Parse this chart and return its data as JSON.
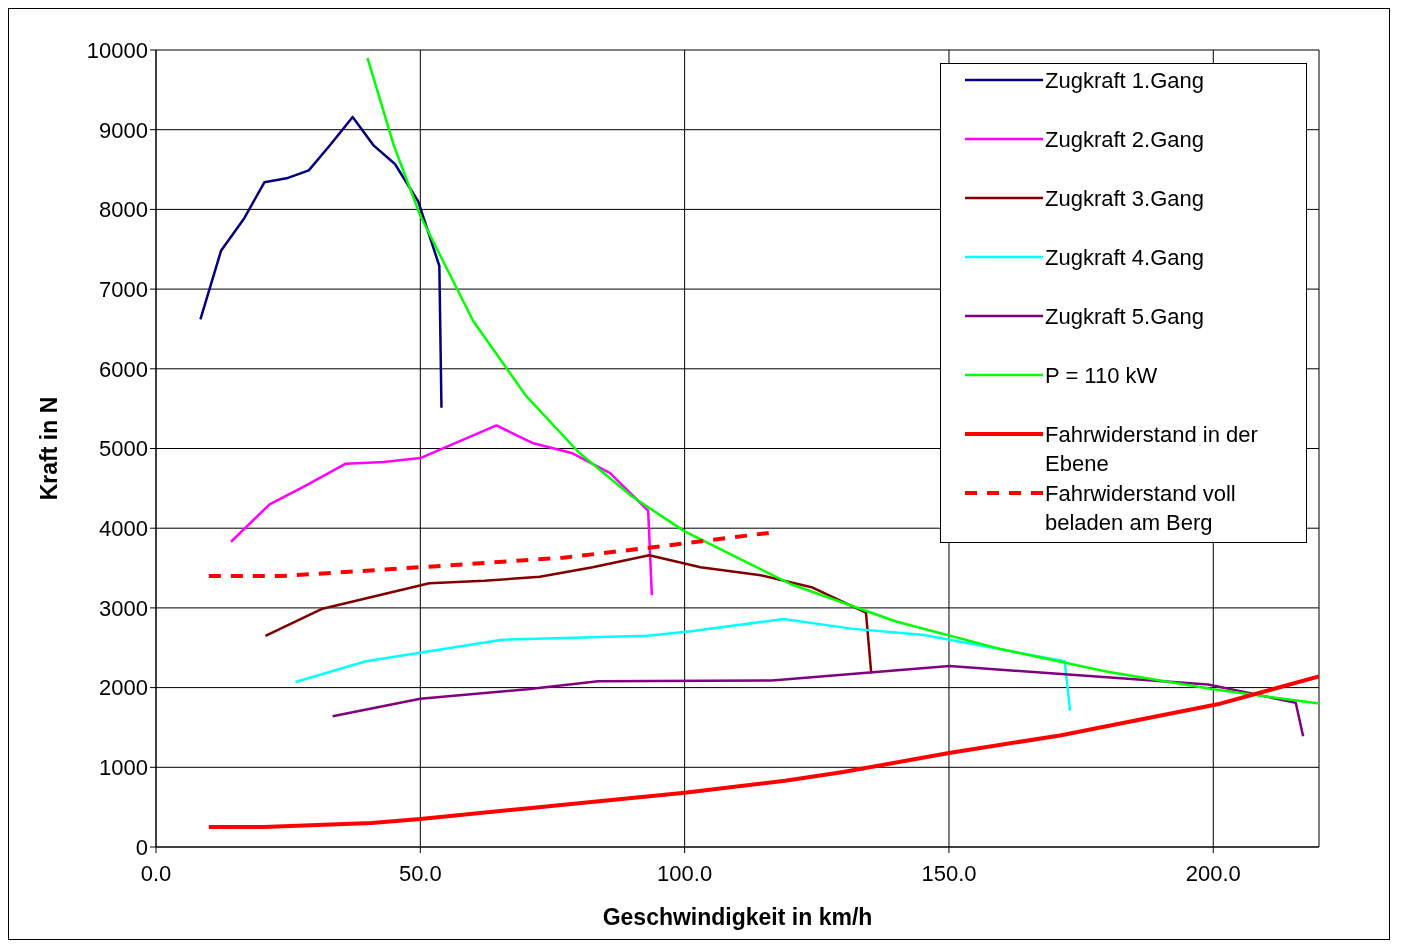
{
  "chart_data": {
    "type": "line",
    "xlabel": "Geschwindigkeit in km/h",
    "ylabel": "Kraft in N",
    "xlim": [
      0,
      220
    ],
    "xticks": [
      {
        "value": 0,
        "label": "0.0"
      },
      {
        "value": 50,
        "label": "50.0"
      },
      {
        "value": 100,
        "label": "100.0"
      },
      {
        "value": 150,
        "label": "150.0"
      },
      {
        "value": 200,
        "label": "200.0"
      }
    ],
    "ylim": [
      0,
      10000
    ],
    "yticks": [
      0,
      1000,
      2000,
      3000,
      4000,
      5000,
      6000,
      7000,
      8000,
      9000,
      10000
    ],
    "grid": true,
    "legend": "top right",
    "marker": "none",
    "series": [
      {
        "name": "Zugkraft 1.Gang",
        "color": "#000080",
        "line_style": "solid",
        "x": [
          8.4,
          12.3,
          16.7,
          20.5,
          24.7,
          28.9,
          33.1,
          37.2,
          41.2,
          45.2,
          49.6,
          53.6,
          54
        ],
        "values": [
          6620,
          7480,
          7890,
          8340,
          8390,
          8490,
          8820,
          9160,
          8800,
          8570,
          8100,
          7290,
          5510
        ]
      },
      {
        "name": "Zugkraft 2.Gang",
        "color": "#ff00ff",
        "line_style": "solid",
        "x": [
          14.2,
          21.5,
          28.5,
          35.9,
          43.1,
          50,
          64.4,
          71.2,
          78.8,
          85.9,
          93.1,
          93.8
        ],
        "values": [
          3830,
          4300,
          4540,
          4810,
          4830,
          4880,
          5290,
          5070,
          4940,
          4690,
          4220,
          3160
        ]
      },
      {
        "name": "Zugkraft 3.Gang",
        "color": "#800000",
        "line_style": "solid",
        "x": [
          20.7,
          31.5,
          51.7,
          62.1,
          72.6,
          82.6,
          93.3,
          103,
          114.4,
          124,
          134.3,
          135.3
        ],
        "values": [
          2650,
          2990,
          3310,
          3340,
          3390,
          3510,
          3660,
          3510,
          3410,
          3260,
          2940,
          2180
        ]
      },
      {
        "name": "Zugkraft 4.Gang",
        "color": "#00ffff",
        "line_style": "solid",
        "x": [
          26.4,
          39.7,
          65.5,
          93.1,
          101.6,
          118.7,
          131.5,
          145.3,
          171.9,
          172.9
        ],
        "values": [
          2070,
          2330,
          2600,
          2650,
          2710,
          2860,
          2740,
          2660,
          2330,
          1710
        ]
      },
      {
        "name": "Zugkraft 5.Gang",
        "color": "#800080",
        "line_style": "solid",
        "x": [
          33.4,
          50,
          70.3,
          83.6,
          116.5,
          150.1,
          199,
          215.6,
          217
        ],
        "values": [
          1640,
          1860,
          1980,
          2080,
          2090,
          2270,
          2040,
          1810,
          1390
        ]
      },
      {
        "name": "P = 110 kW",
        "color": "#00ff00",
        "line_style": "solid",
        "x": [
          40,
          45,
          50,
          60,
          70,
          80,
          90,
          100,
          120,
          140,
          160,
          180,
          200,
          220
        ],
        "values": [
          9900,
          8800,
          7920,
          6600,
          5660,
          4950,
          4400,
          3960,
          3300,
          2830,
          2480,
          2200,
          1980,
          1800
        ]
      },
      {
        "name": "Fahrwiderstand in der Ebene",
        "color": "#ff0000",
        "line_style": "solid",
        "x": [
          10,
          20.3,
          40.8,
          50,
          71,
          80,
          100,
          119,
          130,
          150,
          171,
          200.8,
          220
        ],
        "values": [
          250,
          250,
          300,
          350,
          490,
          550,
          680,
          830,
          940,
          1180,
          1400,
          1790,
          2140
        ]
      },
      {
        "name": "Fahrwiderstand voll beladen am Berg",
        "color": "#ff0000",
        "line_style": "dashed",
        "x": [
          10,
          23.7,
          50,
          77,
          94,
          117
        ],
        "values": [
          3400,
          3400,
          3510,
          3630,
          3760,
          3950
        ]
      }
    ]
  }
}
